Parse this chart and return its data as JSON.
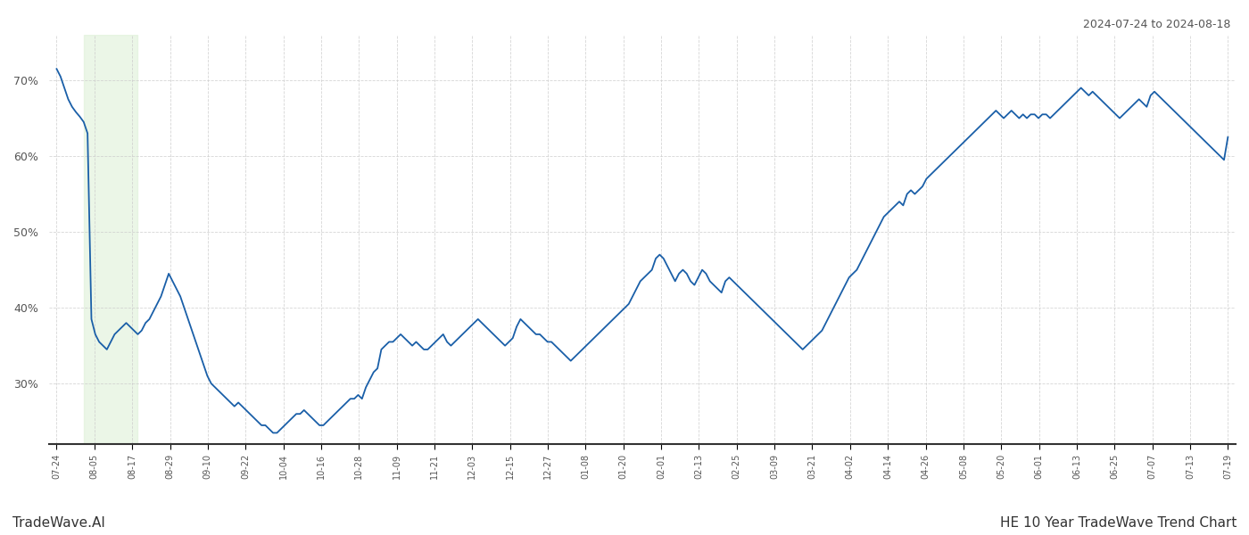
{
  "title_top_right": "2024-07-24 to 2024-08-18",
  "title_bottom_left": "TradeWave.AI",
  "title_bottom_right": "HE 10 Year TradeWave Trend Chart",
  "line_color": "#1a5fa8",
  "highlight_color": "#dff0d8",
  "highlight_alpha": 0.6,
  "background_color": "#ffffff",
  "grid_color": "#cccccc",
  "ylim": [
    22,
    76
  ],
  "yticks": [
    30,
    40,
    50,
    60,
    70
  ],
  "x_labels": [
    "07-24",
    "08-05",
    "08-17",
    "08-29",
    "09-10",
    "09-22",
    "10-04",
    "10-16",
    "10-28",
    "11-09",
    "11-21",
    "12-03",
    "12-15",
    "12-27",
    "01-08",
    "01-20",
    "02-01",
    "02-13",
    "02-25",
    "03-09",
    "03-21",
    "04-02",
    "04-14",
    "04-26",
    "05-08",
    "05-20",
    "06-01",
    "06-13",
    "06-25",
    "07-07",
    "07-13",
    "07-19"
  ],
  "values": [
    71.5,
    70.5,
    69.0,
    67.5,
    66.5,
    65.8,
    65.2,
    64.5,
    63.0,
    38.5,
    36.5,
    35.5,
    35.0,
    34.5,
    35.5,
    36.5,
    37.0,
    37.5,
    38.0,
    37.5,
    37.0,
    36.5,
    37.0,
    38.0,
    38.5,
    39.5,
    40.5,
    41.5,
    43.0,
    44.5,
    43.5,
    42.5,
    41.5,
    40.0,
    38.5,
    37.0,
    35.5,
    34.0,
    32.5,
    31.0,
    30.0,
    29.5,
    29.0,
    28.5,
    28.0,
    27.5,
    27.0,
    27.5,
    27.0,
    26.5,
    26.0,
    25.5,
    25.0,
    24.5,
    24.5,
    24.0,
    23.5,
    23.5,
    24.0,
    24.5,
    25.0,
    25.5,
    26.0,
    26.0,
    26.5,
    26.0,
    25.5,
    25.0,
    24.5,
    24.5,
    25.0,
    25.5,
    26.0,
    26.5,
    27.0,
    27.5,
    28.0,
    28.0,
    28.5,
    28.0,
    29.5,
    30.5,
    31.5,
    32.0,
    34.5,
    35.0,
    35.5,
    35.5,
    36.0,
    36.5,
    36.0,
    35.5,
    35.0,
    35.5,
    35.0,
    34.5,
    34.5,
    35.0,
    35.5,
    36.0,
    36.5,
    35.5,
    35.0,
    35.5,
    36.0,
    36.5,
    37.0,
    37.5,
    38.0,
    38.5,
    38.0,
    37.5,
    37.0,
    36.5,
    36.0,
    35.5,
    35.0,
    35.5,
    36.0,
    37.5,
    38.5,
    38.0,
    37.5,
    37.0,
    36.5,
    36.5,
    36.0,
    35.5,
    35.5,
    35.0,
    34.5,
    34.0,
    33.5,
    33.0,
    33.5,
    34.0,
    34.5,
    35.0,
    35.5,
    36.0,
    36.5,
    37.0,
    37.5,
    38.0,
    38.5,
    39.0,
    39.5,
    40.0,
    40.5,
    41.5,
    42.5,
    43.5,
    44.0,
    44.5,
    45.0,
    46.5,
    47.0,
    46.5,
    45.5,
    44.5,
    43.5,
    44.5,
    45.0,
    44.5,
    43.5,
    43.0,
    44.0,
    45.0,
    44.5,
    43.5,
    43.0,
    42.5,
    42.0,
    43.5,
    44.0,
    43.5,
    43.0,
    42.5,
    42.0,
    41.5,
    41.0,
    40.5,
    40.0,
    39.5,
    39.0,
    38.5,
    38.0,
    37.5,
    37.0,
    36.5,
    36.0,
    35.5,
    35.0,
    34.5,
    35.0,
    35.5,
    36.0,
    36.5,
    37.0,
    38.0,
    39.0,
    40.0,
    41.0,
    42.0,
    43.0,
    44.0,
    44.5,
    45.0,
    46.0,
    47.0,
    48.0,
    49.0,
    50.0,
    51.0,
    52.0,
    52.5,
    53.0,
    53.5,
    54.0,
    53.5,
    55.0,
    55.5,
    55.0,
    55.5,
    56.0,
    57.0,
    57.5,
    58.0,
    58.5,
    59.0,
    59.5,
    60.0,
    60.5,
    61.0,
    61.5,
    62.0,
    62.5,
    63.0,
    63.5,
    64.0,
    64.5,
    65.0,
    65.5,
    66.0,
    65.5,
    65.0,
    65.5,
    66.0,
    65.5,
    65.0,
    65.5,
    65.0,
    65.5,
    65.5,
    65.0,
    65.5,
    65.5,
    65.0,
    65.5,
    66.0,
    66.5,
    67.0,
    67.5,
    68.0,
    68.5,
    69.0,
    68.5,
    68.0,
    68.5,
    68.0,
    67.5,
    67.0,
    66.5,
    66.0,
    65.5,
    65.0,
    65.5,
    66.0,
    66.5,
    67.0,
    67.5,
    67.0,
    66.5,
    68.0,
    68.5,
    68.0,
    67.5,
    67.0,
    66.5,
    66.0,
    65.5,
    65.0,
    64.5,
    64.0,
    63.5,
    63.0,
    62.5,
    62.0,
    61.5,
    61.0,
    60.5,
    60.0,
    59.5,
    62.5
  ]
}
